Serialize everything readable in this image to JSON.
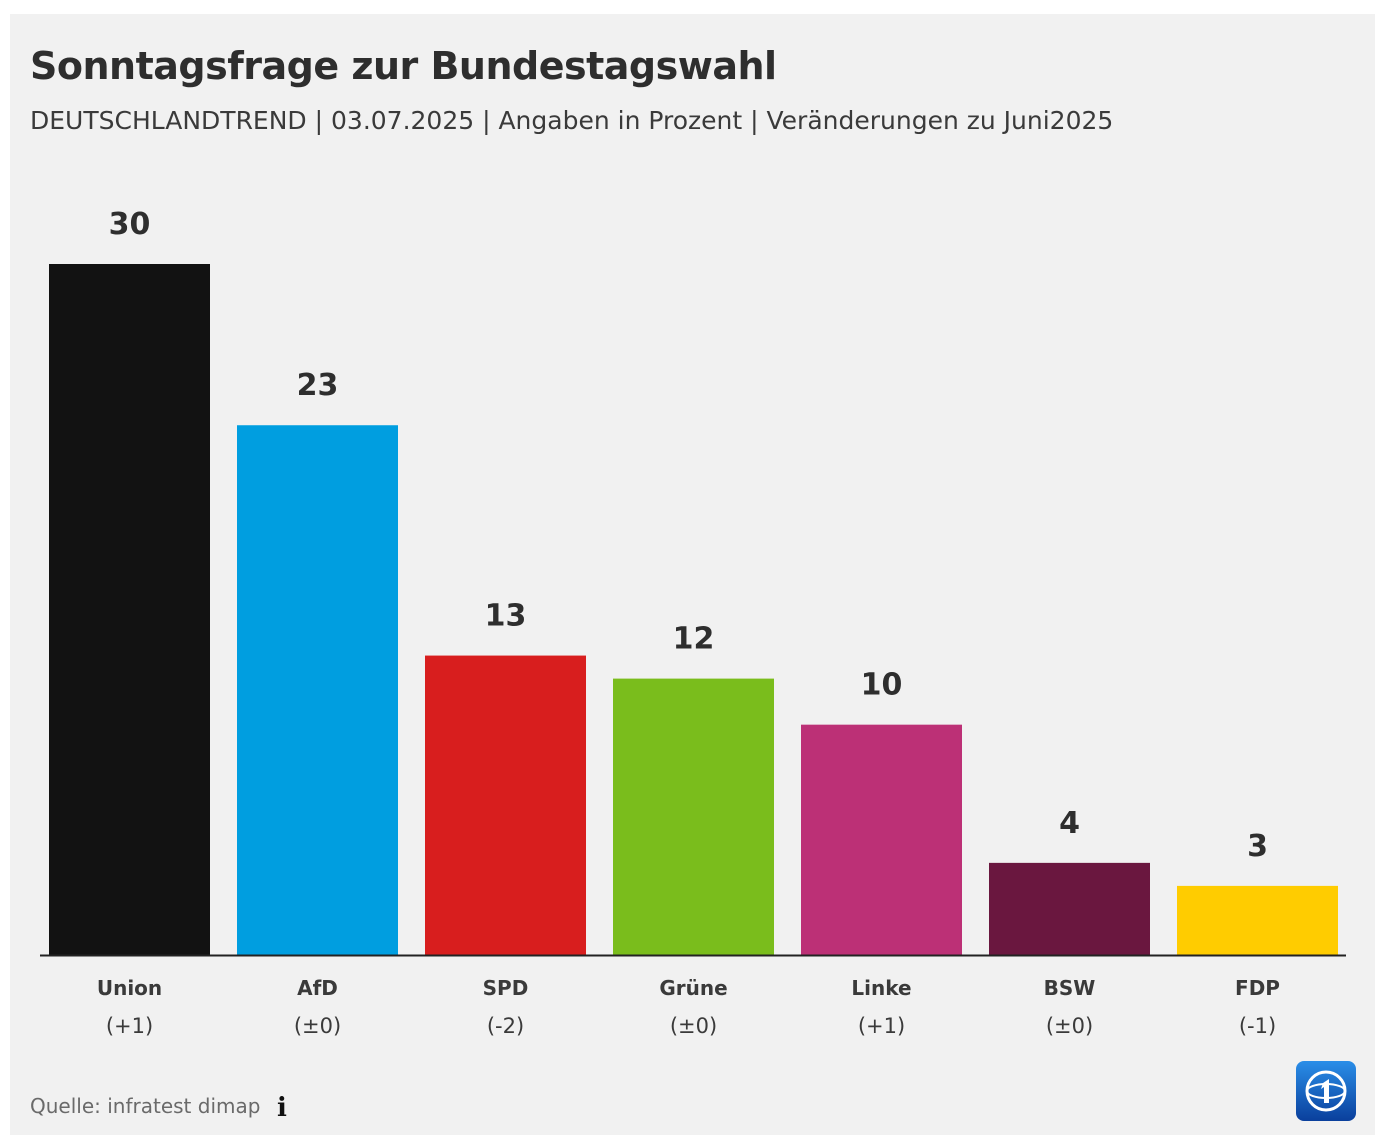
{
  "header": {
    "title": "Sonntagsfrage zur Bundestagswahl",
    "subtitle": "DEUTSCHLANDTREND | 03.07.2025 | Angaben in Prozent | Veränderungen zu Juni2025"
  },
  "chart_data": {
    "type": "bar",
    "categories": [
      "Union",
      "AfD",
      "SPD",
      "Grüne",
      "Linke",
      "BSW",
      "FDP"
    ],
    "values": [
      30,
      23,
      13,
      12,
      10,
      4,
      3
    ],
    "value_labels": [
      "30",
      "23",
      "13",
      "12",
      "10",
      "4",
      "3"
    ],
    "changes": [
      "(+1)",
      "(±0)",
      "(-2)",
      "(±0)",
      "(+1)",
      "(±0)",
      "(-1)"
    ],
    "colors": [
      "#121212",
      "#009ee0",
      "#d81e1e",
      "#7abd1c",
      "#bc3076",
      "#6a173f",
      "#ffcc00"
    ],
    "title": "Sonntagsfrage zur Bundestagswahl",
    "xlabel": "",
    "ylabel": "",
    "ylim": [
      0,
      30
    ],
    "grid": false,
    "legend": "none"
  },
  "footer": {
    "source": "Quelle: infratest dimap",
    "info_icon": "info-icon",
    "logo_icon": "ard-logo-icon"
  }
}
